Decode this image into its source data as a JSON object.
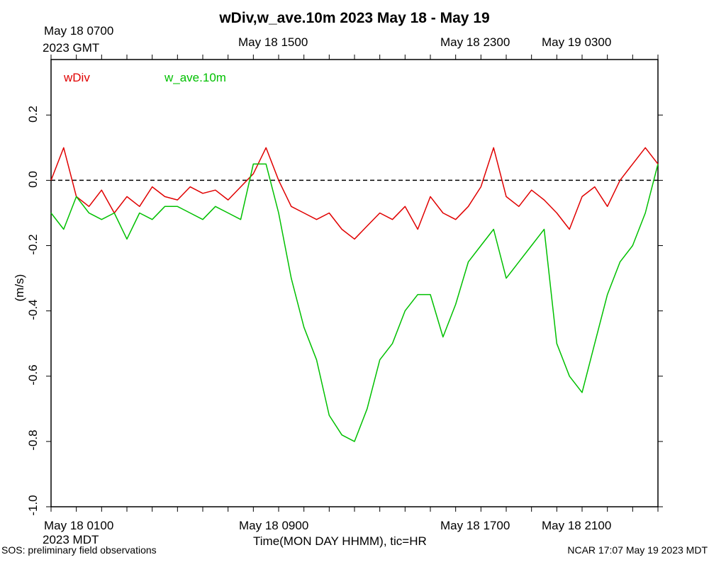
{
  "chart_data": {
    "type": "line",
    "title": "wDiv,w_ave.10m 2023 May 18 - May 19",
    "xlabel": "Time(MON DAY HHMM), tic=HR",
    "ylabel": "(m/s)",
    "ylim": [
      -1.0,
      0.37
    ],
    "xlim_hours_mdt": [
      0,
      24
    ],
    "yticks": [
      {
        "value": -1.0,
        "label": "-1.0"
      },
      {
        "value": -0.8,
        "label": "-0.8"
      },
      {
        "value": -0.6,
        "label": "-0.6"
      },
      {
        "value": -0.4,
        "label": "-0.4"
      },
      {
        "value": -0.2,
        "label": "-0.2"
      },
      {
        "value": 0.0,
        "label": "0.0"
      },
      {
        "value": 0.2,
        "label": "0.2"
      }
    ],
    "bottom_axis": {
      "first_label_line1": "May 18 0100",
      "first_label_line2": "2023 MDT",
      "labels": [
        {
          "hour": 1,
          "label": "May 18 0100"
        },
        {
          "hour": 9,
          "label": "May 18 0900"
        },
        {
          "hour": 17,
          "label": "May 18 1700"
        },
        {
          "hour": 21,
          "label": "May 18 2100"
        }
      ]
    },
    "top_axis": {
      "first_label_line1": "May 18 0700",
      "first_label_line2": "2023 GMT",
      "labels": [
        {
          "hour": 9,
          "label": "May 18 1500"
        },
        {
          "hour": 17,
          "label": "May 18 2300"
        },
        {
          "hour": 21,
          "label": "May 19 0300"
        }
      ]
    },
    "reference_line": 0.0,
    "series": [
      {
        "name": "wDiv",
        "color": "#e00000",
        "x": [
          0,
          0.5,
          1,
          1.5,
          2,
          2.5,
          3,
          3.5,
          4,
          4.5,
          5,
          5.5,
          6,
          6.5,
          7,
          7.5,
          8,
          8.5,
          9,
          9.5,
          10,
          10.5,
          11,
          11.5,
          12,
          12.5,
          13,
          13.5,
          14,
          14.5,
          15,
          15.5,
          16,
          16.5,
          17,
          17.5,
          18,
          18.5,
          19,
          19.5,
          20,
          20.5,
          21,
          21.5,
          22,
          22.5,
          23,
          23.5,
          24
        ],
        "values": [
          0.0,
          0.1,
          -0.05,
          -0.08,
          -0.03,
          -0.1,
          -0.05,
          -0.08,
          -0.02,
          -0.05,
          -0.06,
          -0.02,
          -0.04,
          -0.03,
          -0.06,
          -0.02,
          0.02,
          0.1,
          0.0,
          -0.08,
          -0.1,
          -0.12,
          -0.1,
          -0.15,
          -0.18,
          -0.14,
          -0.1,
          -0.12,
          -0.08,
          -0.15,
          -0.05,
          -0.1,
          -0.12,
          -0.08,
          -0.02,
          0.1,
          -0.05,
          -0.08,
          -0.03,
          -0.06,
          -0.1,
          -0.15,
          -0.05,
          -0.02,
          -0.08,
          0.0,
          0.05,
          0.1,
          0.05
        ]
      },
      {
        "name": "w_ave.10m",
        "color": "#00c000",
        "x": [
          0,
          0.5,
          1,
          1.5,
          2,
          2.5,
          3,
          3.5,
          4,
          4.5,
          5,
          5.5,
          6,
          6.5,
          7,
          7.5,
          8,
          8.5,
          9,
          9.5,
          10,
          10.5,
          11,
          11.5,
          12,
          12.5,
          13,
          13.5,
          14,
          14.5,
          15,
          15.5,
          16,
          16.5,
          17,
          17.5,
          18,
          18.5,
          19,
          19.5,
          20,
          20.5,
          21,
          21.5,
          22,
          22.5,
          23,
          23.5,
          24
        ],
        "values": [
          -0.1,
          -0.15,
          -0.05,
          -0.1,
          -0.12,
          -0.1,
          -0.18,
          -0.1,
          -0.12,
          -0.08,
          -0.08,
          -0.1,
          -0.12,
          -0.08,
          -0.1,
          -0.12,
          0.05,
          0.05,
          -0.1,
          -0.3,
          -0.45,
          -0.55,
          -0.72,
          -0.78,
          -0.8,
          -0.7,
          -0.55,
          -0.5,
          -0.4,
          -0.35,
          -0.35,
          -0.48,
          -0.38,
          -0.25,
          -0.2,
          -0.15,
          -0.3,
          -0.25,
          -0.2,
          -0.15,
          -0.5,
          -0.6,
          -0.65,
          -0.5,
          -0.35,
          -0.25,
          -0.2,
          -0.1,
          0.05
        ]
      }
    ]
  },
  "footer": {
    "left": "SOS: preliminary field observations",
    "right": "NCAR 17:07 May 19 2023 MDT"
  }
}
